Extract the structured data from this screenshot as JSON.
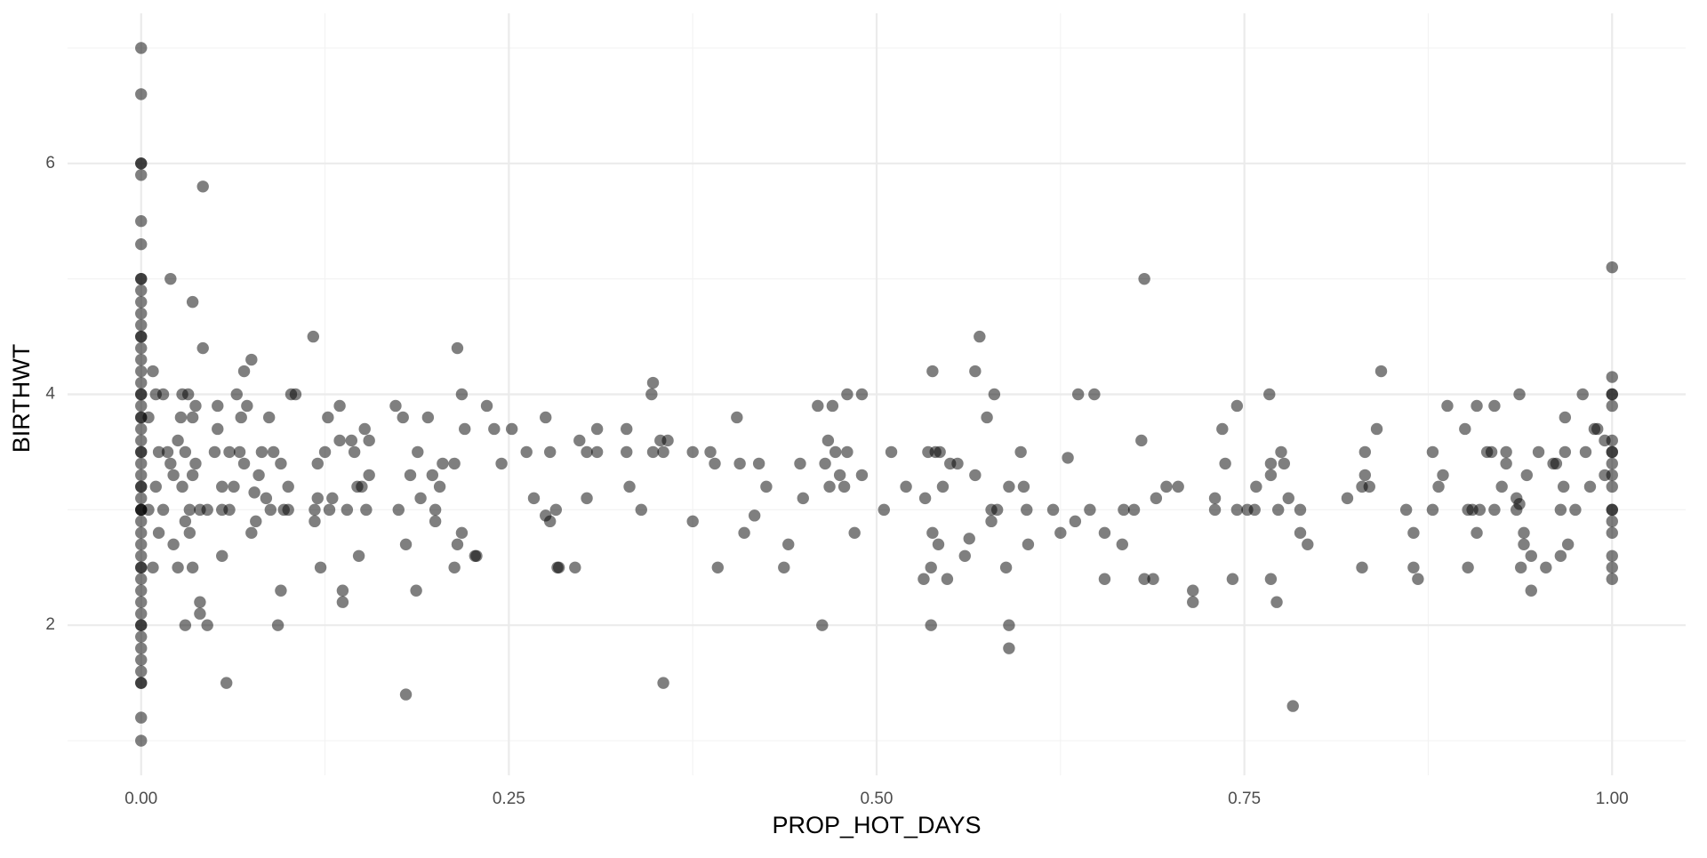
{
  "chart_data": {
    "type": "scatter",
    "x_label": "PROP_HOT_DAYS",
    "y_label": "BIRTHWT",
    "color": "#000000",
    "alpha": 0.5,
    "grid": true,
    "xlim": [
      -0.05,
      1.05
    ],
    "xticks": [
      {
        "value": 0,
        "label": "0.00"
      },
      {
        "value": 0.25,
        "label": "0.25"
      },
      {
        "value": 0.5,
        "label": "0.50"
      },
      {
        "value": 0.75,
        "label": "0.75"
      },
      {
        "value": 1,
        "label": "1.00"
      }
    ],
    "ylim": [
      0.7,
      7.3
    ],
    "yticks": [
      2,
      4,
      6
    ],
    "x": [
      0,
      0,
      0,
      0,
      0,
      0,
      0,
      0,
      0,
      0,
      0,
      0,
      0,
      0,
      0,
      0,
      0,
      0,
      0,
      0,
      0,
      0,
      0,
      0,
      0,
      0,
      0,
      0,
      0,
      0,
      0,
      0,
      0,
      0,
      0,
      0,
      0,
      0,
      0,
      0,
      0,
      0,
      0,
      0,
      0,
      0,
      0,
      0,
      0,
      0,
      0,
      0,
      0,
      0,
      0,
      0,
      0.005,
      0.008,
      0.01,
      0.012,
      0.015,
      0.005,
      0.008,
      0.01,
      0.012,
      0.015,
      0.018,
      0.02,
      0.02,
      0.022,
      0.022,
      0.025,
      0.025,
      0.027,
      0.028,
      0.028,
      0.03,
      0.03,
      0.03,
      0.032,
      0.033,
      0.033,
      0.035,
      0.035,
      0.035,
      0.035,
      0.037,
      0.037,
      0.04,
      0.04,
      0.04,
      0.042,
      0.042,
      0.045,
      0.045,
      0.05,
      0.052,
      0.052,
      0.055,
      0.055,
      0.055,
      0.058,
      0.06,
      0.06,
      0.063,
      0.065,
      0.067,
      0.068,
      0.07,
      0.07,
      0.072,
      0.075,
      0.075,
      0.077,
      0.078,
      0.08,
      0.082,
      0.085,
      0.087,
      0.088,
      0.09,
      0.093,
      0.095,
      0.095,
      0.097,
      0.1,
      0.1,
      0.102,
      0.105,
      0.117,
      0.118,
      0.118,
      0.12,
      0.12,
      0.122,
      0.125,
      0.127,
      0.128,
      0.13,
      0.135,
      0.135,
      0.137,
      0.137,
      0.14,
      0.143,
      0.145,
      0.147,
      0.148,
      0.15,
      0.152,
      0.153,
      0.155,
      0.155,
      0.173,
      0.175,
      0.178,
      0.18,
      0.18,
      0.183,
      0.187,
      0.188,
      0.19,
      0.195,
      0.198,
      0.2,
      0.2,
      0.203,
      0.205,
      0.213,
      0.213,
      0.215,
      0.215,
      0.218,
      0.218,
      0.22,
      0.227,
      0.228,
      0.235,
      0.24,
      0.245,
      0.252,
      0.262,
      0.267,
      0.275,
      0.275,
      0.278,
      0.278,
      0.282,
      0.283,
      0.284,
      0.295,
      0.298,
      0.303,
      0.303,
      0.31,
      0.31,
      0.33,
      0.33,
      0.332,
      0.34,
      0.347,
      0.348,
      0.348,
      0.353,
      0.355,
      0.355,
      0.358,
      0.375,
      0.375,
      0.387,
      0.39,
      0.392,
      0.405,
      0.407,
      0.41,
      0.417,
      0.42,
      0.425,
      0.437,
      0.44,
      0.448,
      0.45,
      0.46,
      0.463,
      0.465,
      0.467,
      0.468,
      0.47,
      0.472,
      0.475,
      0.478,
      0.48,
      0.48,
      0.485,
      0.49,
      0.49,
      0.505,
      0.51,
      0.52,
      0.532,
      0.533,
      0.535,
      0.537,
      0.537,
      0.538,
      0.538,
      0.54,
      0.542,
      0.543,
      0.545,
      0.548,
      0.55,
      0.555,
      0.56,
      0.563,
      0.567,
      0.567,
      0.57,
      0.575,
      0.578,
      0.578,
      0.58,
      0.582,
      0.588,
      0.59,
      0.59,
      0.59,
      0.598,
      0.6,
      0.602,
      0.603,
      0.62,
      0.625,
      0.63,
      0.635,
      0.637,
      0.645,
      0.648,
      0.655,
      0.655,
      0.667,
      0.668,
      0.675,
      0.68,
      0.682,
      0.682,
      0.688,
      0.69,
      0.697,
      0.705,
      0.715,
      0.715,
      0.73,
      0.73,
      0.735,
      0.737,
      0.742,
      0.745,
      0.745,
      0.752,
      0.757,
      0.758,
      0.767,
      0.768,
      0.768,
      0.768,
      0.772,
      0.773,
      0.775,
      0.777,
      0.78,
      0.783,
      0.788,
      0.788,
      0.793,
      0.82,
      0.83,
      0.83,
      0.832,
      0.832,
      0.835,
      0.84,
      0.843,
      0.86,
      0.865,
      0.865,
      0.868,
      0.878,
      0.878,
      0.882,
      0.885,
      0.888,
      0.9,
      0.902,
      0.902,
      0.905,
      0.908,
      0.908,
      0.91,
      0.915,
      0.918,
      0.92,
      0.92,
      0.925,
      0.928,
      0.928,
      0.935,
      0.935,
      0.937,
      0.937,
      0.938,
      0.94,
      0.94,
      0.942,
      0.945,
      0.945,
      0.95,
      0.955,
      0.96,
      0.962,
      0.965,
      0.965,
      0.967,
      0.968,
      0.968,
      0.97,
      0.975,
      0.98,
      0.982,
      0.985,
      0.988,
      0.99,
      0.995,
      0.995,
      1,
      1,
      1,
      1,
      1,
      1,
      1,
      1,
      1,
      1,
      1,
      1,
      1,
      1,
      1,
      1,
      1,
      1
    ],
    "values": [
      7.0,
      6.6,
      6.0,
      5.9,
      5.5,
      5.3,
      5.0,
      4.9,
      4.8,
      4.7,
      4.6,
      4.5,
      4.4,
      4.3,
      4.2,
      4.1,
      4.0,
      3.9,
      3.8,
      3.7,
      3.6,
      3.5,
      3.4,
      3.3,
      3.2,
      3.1,
      3.0,
      2.9,
      2.8,
      2.7,
      2.6,
      2.5,
      2.4,
      2.3,
      2.2,
      2.1,
      2.0,
      1.9,
      1.8,
      1.7,
      1.6,
      1.5,
      1.2,
      1.0,
      6.0,
      5.0,
      4.5,
      4.0,
      3.5,
      3.0,
      3.0,
      2.5,
      2.0,
      1.5,
      3.2,
      3.8,
      3.8,
      4.2,
      4.0,
      3.5,
      4.0,
      3.0,
      2.5,
      3.2,
      2.8,
      3.0,
      3.5,
      5.0,
      3.4,
      3.3,
      2.7,
      3.6,
      2.5,
      3.8,
      4.0,
      3.2,
      2.0,
      2.9,
      3.5,
      4.0,
      3.0,
      2.8,
      4.8,
      3.8,
      3.3,
      2.5,
      3.9,
      3.4,
      3.0,
      2.2,
      2.1,
      5.8,
      4.4,
      2.0,
      3.0,
      3.5,
      3.9,
      3.7,
      3.0,
      2.6,
      3.2,
      1.5,
      3.5,
      3.0,
      3.2,
      4.0,
      3.5,
      3.8,
      4.2,
      3.4,
      3.9,
      4.3,
      2.8,
      3.15,
      2.9,
      3.3,
      3.5,
      3.1,
      3.8,
      3.0,
      3.5,
      2.0,
      2.3,
      3.4,
      3.0,
      3.2,
      3.0,
      4.0,
      4.0,
      4.5,
      3.0,
      2.9,
      3.4,
      3.1,
      2.5,
      3.5,
      3.8,
      3.0,
      3.1,
      3.9,
      3.6,
      2.3,
      2.2,
      3.0,
      3.6,
      3.5,
      3.2,
      2.6,
      3.2,
      3.7,
      3.0,
      3.3,
      3.6,
      3.9,
      3.0,
      3.8,
      2.7,
      1.4,
      3.3,
      2.3,
      3.5,
      3.1,
      3.8,
      3.3,
      3.0,
      2.9,
      3.2,
      3.4,
      3.4,
      2.5,
      2.7,
      4.4,
      2.8,
      4.0,
      3.7,
      2.6,
      2.6,
      3.9,
      3.7,
      3.4,
      3.7,
      3.5,
      3.1,
      3.8,
      2.95,
      3.5,
      2.9,
      3.0,
      2.5,
      2.5,
      2.5,
      3.6,
      3.5,
      3.1,
      3.7,
      3.5,
      3.7,
      3.5,
      3.2,
      3.0,
      4.0,
      4.1,
      3.5,
      3.6,
      3.5,
      1.5,
      3.6,
      3.5,
      2.9,
      3.5,
      3.4,
      2.5,
      3.8,
      3.4,
      2.8,
      2.95,
      3.4,
      3.2,
      2.5,
      2.7,
      3.4,
      3.1,
      3.9,
      2.0,
      3.4,
      3.6,
      3.2,
      3.9,
      3.5,
      3.3,
      3.2,
      4.0,
      3.5,
      2.8,
      4.0,
      3.3,
      3.0,
      3.5,
      3.2,
      2.4,
      3.1,
      3.5,
      2.5,
      2.0,
      4.2,
      2.8,
      3.5,
      2.7,
      3.5,
      3.2,
      2.4,
      3.4,
      3.4,
      2.6,
      2.75,
      4.2,
      3.3,
      4.5,
      3.8,
      2.9,
      3.0,
      4.0,
      3.0,
      2.5,
      3.2,
      2.0,
      1.8,
      3.5,
      3.2,
      3.0,
      2.7,
      3.0,
      2.8,
      3.45,
      2.9,
      4.0,
      3.0,
      4.0,
      2.8,
      2.4,
      2.7,
      3.0,
      3.0,
      3.6,
      5.0,
      2.4,
      2.4,
      3.1,
      3.2,
      3.2,
      2.3,
      2.2,
      3.1,
      3.0,
      3.7,
      3.4,
      2.4,
      3.9,
      3.0,
      3.0,
      3.0,
      3.2,
      4.0,
      3.3,
      3.4,
      2.4,
      2.2,
      3.0,
      3.5,
      3.4,
      3.1,
      1.3,
      2.8,
      3.0,
      2.7,
      3.1,
      2.5,
      3.2,
      3.3,
      3.5,
      3.2,
      3.7,
      4.2,
      3.0,
      2.8,
      2.5,
      2.4,
      3.5,
      3.0,
      3.2,
      3.3,
      3.9,
      3.7,
      3.0,
      2.5,
      3.0,
      3.9,
      2.8,
      3.0,
      3.5,
      3.5,
      3.9,
      3.0,
      3.2,
      3.5,
      3.4,
      3.1,
      3.0,
      4.0,
      3.05,
      2.5,
      2.8,
      2.7,
      3.3,
      2.6,
      2.3,
      3.5,
      2.5,
      3.4,
      3.4,
      2.6,
      3.0,
      3.2,
      3.5,
      3.8,
      2.7,
      3.0,
      4.0,
      3.5,
      3.2,
      3.7,
      3.7,
      3.6,
      3.3,
      5.1,
      4.15,
      4.0,
      3.9,
      3.6,
      3.5,
      3.4,
      3.3,
      3.2,
      3.0,
      2.9,
      2.8,
      2.6,
      2.5,
      2.4,
      4.0,
      3.5,
      3.0
    ]
  }
}
